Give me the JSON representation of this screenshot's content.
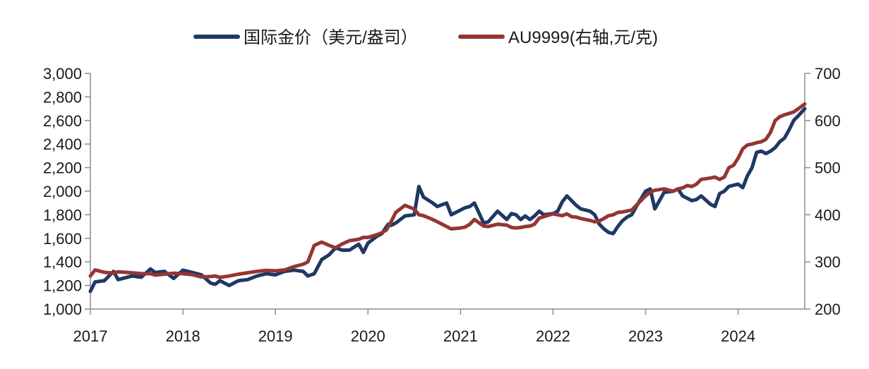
{
  "chart_data": {
    "type": "line",
    "title": "",
    "xlabel": "",
    "ylabel": "",
    "x_tick_labels": [
      "2017",
      "2018",
      "2019",
      "2020",
      "2021",
      "2022",
      "2023",
      "2024"
    ],
    "x_range": [
      2017.0,
      2024.72
    ],
    "y_left": {
      "range": [
        1000,
        3000
      ],
      "ticks": [
        1000,
        1200,
        1400,
        1600,
        1800,
        2000,
        2200,
        2400,
        2600,
        2800,
        3000
      ],
      "tick_labels": [
        "1,000",
        "1,200",
        "1,400",
        "1,600",
        "1,800",
        "2,000",
        "2,200",
        "2,400",
        "2,600",
        "2,800",
        "3,000"
      ]
    },
    "y_right": {
      "range": [
        200,
        700
      ],
      "ticks": [
        200,
        300,
        400,
        500,
        600,
        700
      ],
      "tick_labels": [
        "200",
        "300",
        "400",
        "500",
        "600",
        "700"
      ]
    },
    "legend_position": "top-center",
    "series": [
      {
        "name": "国际金价（美元/盎司）",
        "axis": "left",
        "color": "#1f3864",
        "x": [
          2017.0,
          2017.05,
          2017.15,
          2017.25,
          2017.3,
          2017.45,
          2017.55,
          2017.65,
          2017.7,
          2017.8,
          2017.9,
          2018.0,
          2018.1,
          2018.2,
          2018.3,
          2018.35,
          2018.4,
          2018.5,
          2018.6,
          2018.7,
          2018.8,
          2018.9,
          2019.0,
          2019.1,
          2019.2,
          2019.3,
          2019.35,
          2019.42,
          2019.5,
          2019.58,
          2019.65,
          2019.72,
          2019.8,
          2019.9,
          2019.95,
          2020.0,
          2020.05,
          2020.1,
          2020.15,
          2020.2,
          2020.22,
          2020.25,
          2020.3,
          2020.4,
          2020.5,
          2020.55,
          2020.6,
          2020.7,
          2020.75,
          2020.85,
          2020.9,
          2021.0,
          2021.05,
          2021.1,
          2021.15,
          2021.25,
          2021.3,
          2021.4,
          2021.5,
          2021.55,
          2021.6,
          2021.65,
          2021.7,
          2021.75,
          2021.8,
          2021.85,
          2021.9,
          2022.0,
          2022.05,
          2022.1,
          2022.15,
          2022.2,
          2022.25,
          2022.3,
          2022.35,
          2022.4,
          2022.45,
          2022.5,
          2022.55,
          2022.6,
          2022.65,
          2022.7,
          2022.75,
          2022.8,
          2022.85,
          2022.9,
          2023.0,
          2023.05,
          2023.1,
          2023.2,
          2023.3,
          2023.35,
          2023.4,
          2023.45,
          2023.5,
          2023.55,
          2023.6,
          2023.7,
          2023.75,
          2023.8,
          2023.85,
          2023.9,
          2023.95,
          2024.0,
          2024.05,
          2024.1,
          2024.15,
          2024.2,
          2024.25,
          2024.3,
          2024.35,
          2024.4,
          2024.45,
          2024.5,
          2024.55,
          2024.6,
          2024.65,
          2024.72
        ],
        "values": [
          1150,
          1230,
          1240,
          1320,
          1250,
          1280,
          1270,
          1340,
          1310,
          1320,
          1260,
          1330,
          1310,
          1290,
          1220,
          1210,
          1240,
          1200,
          1240,
          1250,
          1280,
          1300,
          1290,
          1320,
          1330,
          1320,
          1280,
          1300,
          1420,
          1460,
          1520,
          1500,
          1500,
          1550,
          1480,
          1560,
          1590,
          1620,
          1640,
          1700,
          1720,
          1710,
          1730,
          1790,
          1800,
          2040,
          1950,
          1900,
          1870,
          1900,
          1800,
          1840,
          1860,
          1870,
          1900,
          1730,
          1740,
          1830,
          1760,
          1810,
          1800,
          1760,
          1790,
          1760,
          1790,
          1830,
          1800,
          1810,
          1830,
          1910,
          1960,
          1920,
          1880,
          1850,
          1840,
          1830,
          1800,
          1720,
          1680,
          1650,
          1640,
          1700,
          1750,
          1780,
          1800,
          1870,
          2000,
          2020,
          1850,
          1990,
          2000,
          2020,
          1960,
          1940,
          1920,
          1930,
          1960,
          1890,
          1870,
          1980,
          2000,
          2040,
          2050,
          2060,
          2030,
          2130,
          2200,
          2330,
          2340,
          2320,
          2340,
          2370,
          2420,
          2450,
          2520,
          2600,
          2640,
          2700
        ]
      },
      {
        "name": "AU9999(右轴,元/克)",
        "axis": "right",
        "color": "#943634",
        "x": [
          2017.0,
          2017.05,
          2017.15,
          2017.25,
          2017.3,
          2017.45,
          2017.55,
          2017.65,
          2017.7,
          2017.8,
          2017.9,
          2018.0,
          2018.1,
          2018.2,
          2018.3,
          2018.35,
          2018.4,
          2018.5,
          2018.6,
          2018.7,
          2018.8,
          2018.9,
          2019.0,
          2019.1,
          2019.2,
          2019.3,
          2019.35,
          2019.42,
          2019.5,
          2019.58,
          2019.65,
          2019.72,
          2019.8,
          2019.9,
          2019.95,
          2020.0,
          2020.05,
          2020.1,
          2020.15,
          2020.2,
          2020.22,
          2020.25,
          2020.3,
          2020.4,
          2020.5,
          2020.55,
          2020.6,
          2020.7,
          2020.75,
          2020.85,
          2020.9,
          2021.0,
          2021.05,
          2021.1,
          2021.15,
          2021.25,
          2021.3,
          2021.4,
          2021.5,
          2021.55,
          2021.6,
          2021.65,
          2021.7,
          2021.75,
          2021.8,
          2021.85,
          2021.9,
          2022.0,
          2022.05,
          2022.1,
          2022.15,
          2022.2,
          2022.25,
          2022.3,
          2022.35,
          2022.4,
          2022.45,
          2022.5,
          2022.55,
          2022.6,
          2022.65,
          2022.7,
          2022.75,
          2022.8,
          2022.85,
          2022.9,
          2023.0,
          2023.05,
          2023.1,
          2023.2,
          2023.3,
          2023.35,
          2023.4,
          2023.45,
          2023.5,
          2023.55,
          2023.6,
          2023.7,
          2023.75,
          2023.8,
          2023.85,
          2023.9,
          2023.95,
          2024.0,
          2024.05,
          2024.1,
          2024.15,
          2024.2,
          2024.25,
          2024.3,
          2024.35,
          2024.4,
          2024.45,
          2024.5,
          2024.55,
          2024.6,
          2024.65,
          2024.72
        ],
        "values": [
          270,
          283,
          278,
          276,
          279,
          277,
          275,
          275,
          272,
          274,
          276,
          275,
          273,
          268,
          269,
          270,
          267,
          270,
          274,
          277,
          280,
          282,
          281,
          283,
          290,
          295,
          300,
          335,
          342,
          335,
          330,
          338,
          345,
          348,
          352,
          352,
          355,
          358,
          362,
          368,
          375,
          385,
          405,
          420,
          412,
          400,
          398,
          390,
          385,
          375,
          370,
          372,
          374,
          380,
          390,
          376,
          375,
          380,
          378,
          373,
          372,
          373,
          375,
          376,
          380,
          393,
          396,
          402,
          400,
          398,
          402,
          396,
          395,
          392,
          390,
          388,
          385,
          387,
          392,
          398,
          400,
          405,
          406,
          408,
          410,
          420,
          440,
          448,
          452,
          455,
          450,
          455,
          457,
          462,
          460,
          465,
          475,
          478,
          480,
          475,
          480,
          500,
          505,
          520,
          540,
          548,
          550,
          553,
          555,
          560,
          575,
          600,
          608,
          612,
          615,
          618,
          625,
          635
        ]
      }
    ]
  }
}
